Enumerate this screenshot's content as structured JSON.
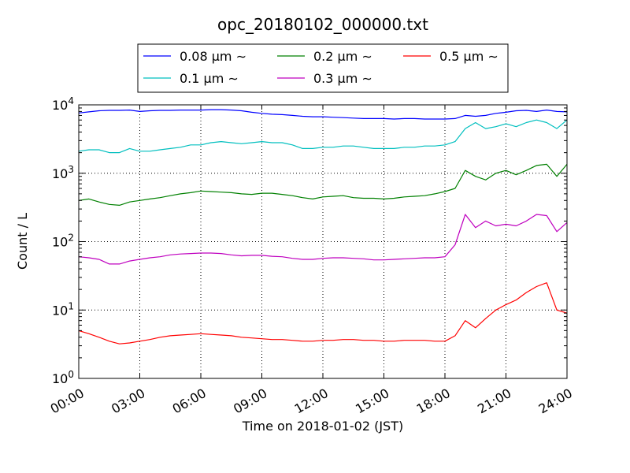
{
  "chart_data": {
    "type": "line",
    "title": "opc_20180102_000000.txt",
    "xlabel": "Time on 2018-01-02 (JST)",
    "ylabel": "Count / L",
    "yscale": "log",
    "ylim": [
      1,
      10000
    ],
    "xlim": [
      "00:00",
      "24:00"
    ],
    "grid": true,
    "legend_position": "top-center, above plot",
    "x_ticks": [
      "00:00",
      "03:00",
      "06:00",
      "09:00",
      "12:00",
      "15:00",
      "18:00",
      "21:00",
      "24:00"
    ],
    "y_ticks": [
      {
        "base": "10",
        "exp": "0"
      },
      {
        "base": "10",
        "exp": "1"
      },
      {
        "base": "10",
        "exp": "2"
      },
      {
        "base": "10",
        "exp": "3"
      },
      {
        "base": "10",
        "exp": "4"
      }
    ],
    "x": [
      "00:00",
      "00:30",
      "01:00",
      "01:30",
      "02:00",
      "02:30",
      "03:00",
      "03:30",
      "04:00",
      "04:30",
      "05:00",
      "05:30",
      "06:00",
      "06:30",
      "07:00",
      "07:30",
      "08:00",
      "08:30",
      "09:00",
      "09:30",
      "10:00",
      "10:30",
      "11:00",
      "11:30",
      "12:00",
      "12:30",
      "13:00",
      "13:30",
      "14:00",
      "14:30",
      "15:00",
      "15:30",
      "16:00",
      "16:30",
      "17:00",
      "17:30",
      "18:00",
      "18:30",
      "19:00",
      "19:30",
      "20:00",
      "20:30",
      "21:00",
      "21:30",
      "22:00",
      "22:30",
      "23:00",
      "23:30",
      "24:00"
    ],
    "series": [
      {
        "name": "0.08 μm ∼",
        "color": "#0000ff",
        "values": [
          7600,
          7900,
          8200,
          8300,
          8300,
          8400,
          8000,
          8200,
          8300,
          8300,
          8400,
          8400,
          8400,
          8500,
          8500,
          8400,
          8200,
          7800,
          7500,
          7300,
          7200,
          7000,
          6800,
          6700,
          6700,
          6600,
          6500,
          6400,
          6300,
          6300,
          6300,
          6200,
          6300,
          6300,
          6200,
          6200,
          6200,
          6300,
          7000,
          6800,
          7000,
          7500,
          7800,
          8200,
          8300,
          8000,
          8400,
          8000,
          7900
        ]
      },
      {
        "name": "0.1 μm ∼",
        "color": "#00bfbf",
        "values": [
          2100,
          2200,
          2200,
          2000,
          2000,
          2300,
          2100,
          2100,
          2200,
          2300,
          2400,
          2600,
          2600,
          2800,
          2900,
          2800,
          2700,
          2800,
          2900,
          2800,
          2800,
          2600,
          2300,
          2300,
          2400,
          2400,
          2500,
          2500,
          2400,
          2300,
          2300,
          2300,
          2400,
          2400,
          2500,
          2500,
          2600,
          2900,
          4500,
          5500,
          4500,
          4800,
          5300,
          4800,
          5500,
          6000,
          5500,
          4500,
          6000
        ]
      },
      {
        "name": "0.2 μm ∼",
        "color": "#008000",
        "values": [
          400,
          420,
          380,
          350,
          340,
          380,
          400,
          420,
          440,
          470,
          500,
          520,
          550,
          540,
          530,
          520,
          500,
          490,
          510,
          510,
          490,
          470,
          440,
          420,
          450,
          460,
          470,
          440,
          430,
          430,
          420,
          430,
          450,
          460,
          470,
          500,
          540,
          600,
          1100,
          900,
          800,
          1000,
          1100,
          950,
          1100,
          1300,
          1350,
          900,
          1350
        ]
      },
      {
        "name": "0.3 μm ∼",
        "color": "#bf00bf",
        "values": [
          60,
          58,
          55,
          47,
          47,
          52,
          55,
          58,
          60,
          64,
          66,
          67,
          68,
          68,
          67,
          64,
          62,
          63,
          63,
          61,
          60,
          57,
          55,
          55,
          57,
          58,
          58,
          57,
          56,
          54,
          54,
          55,
          56,
          57,
          58,
          58,
          60,
          90,
          250,
          160,
          200,
          170,
          180,
          170,
          200,
          250,
          240,
          140,
          190
        ]
      },
      {
        "name": "0.5 μm ∼",
        "color": "#ff0000",
        "values": [
          5,
          4.5,
          4,
          3.5,
          3.2,
          3.3,
          3.5,
          3.7,
          4,
          4.2,
          4.3,
          4.4,
          4.5,
          4.4,
          4.3,
          4.2,
          4,
          3.9,
          3.8,
          3.7,
          3.7,
          3.6,
          3.5,
          3.5,
          3.6,
          3.6,
          3.7,
          3.7,
          3.6,
          3.6,
          3.5,
          3.5,
          3.6,
          3.6,
          3.6,
          3.5,
          3.5,
          4.2,
          7,
          5.5,
          7.5,
          10,
          12,
          14,
          18,
          22,
          25,
          10,
          9
        ]
      }
    ]
  }
}
